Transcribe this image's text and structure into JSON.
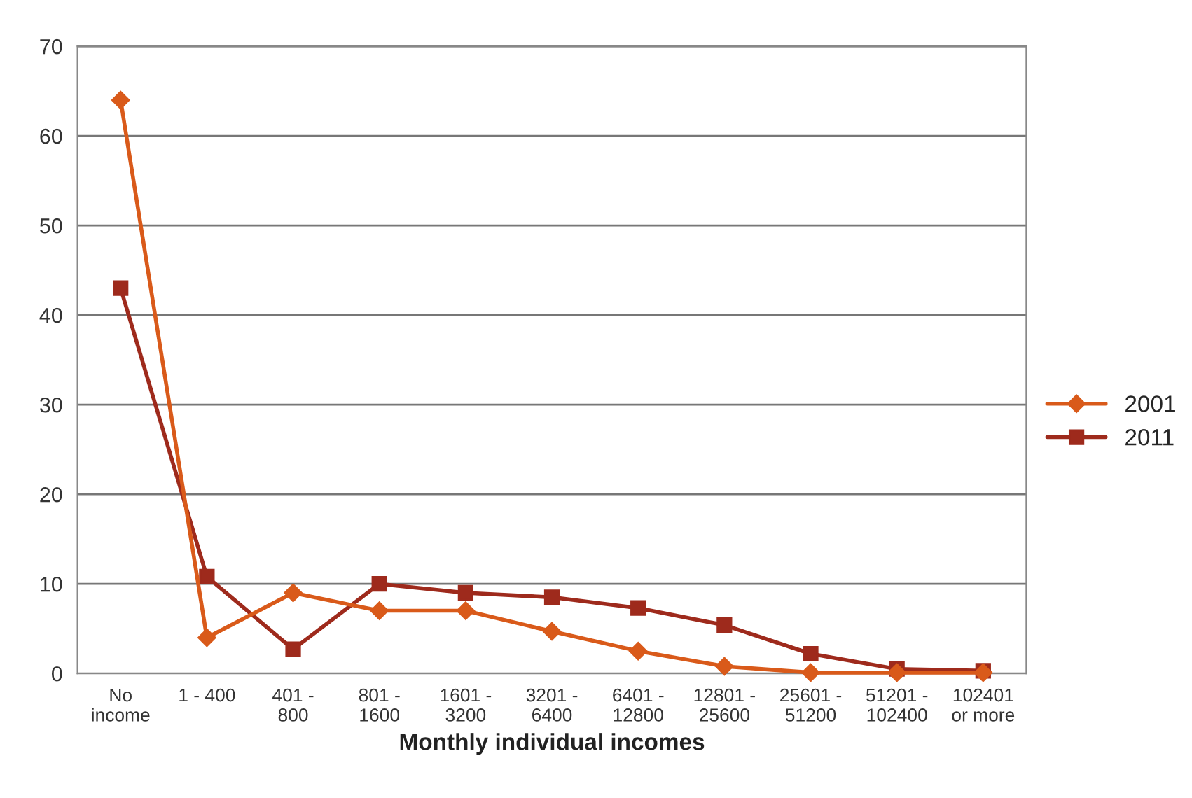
{
  "chart_data": {
    "type": "line",
    "xlabel": "Monthly individual incomes",
    "categories": [
      "No\nincome",
      "1 - 400",
      "401 -\n800",
      "801 -\n1600",
      "1601 -\n3200",
      "3201 -\n6400",
      "6401 -\n12800",
      "12801 -\n25600",
      "25601 -\n51200",
      "51201 -\n102400",
      "102401\nor more"
    ],
    "series": [
      {
        "name": "2001",
        "color": "#d95a1a",
        "marker": "diamond",
        "values": [
          64,
          4,
          9,
          7,
          7,
          4.7,
          2.5,
          0.8,
          0.1,
          0.1,
          0.1
        ]
      },
      {
        "name": "2011",
        "color": "#9e2a1c",
        "marker": "square",
        "values": [
          43,
          10.8,
          2.7,
          10,
          9,
          8.5,
          7.3,
          5.4,
          2.2,
          0.5,
          0.3
        ]
      }
    ],
    "ylim": [
      0,
      70
    ],
    "yticks": [
      0,
      10,
      20,
      30,
      40,
      50,
      60,
      70
    ],
    "grid": "y",
    "legend": "right"
  }
}
